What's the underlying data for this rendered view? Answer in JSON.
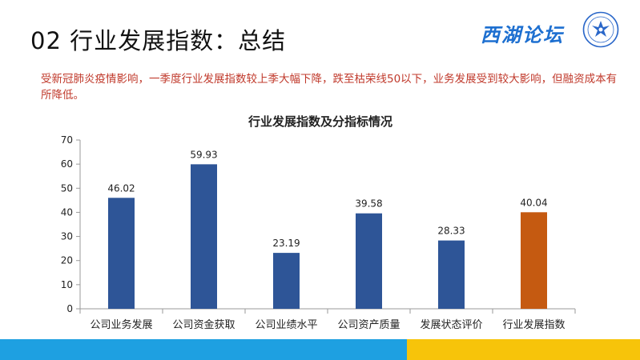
{
  "slide": {
    "title": "02 行业发展指数：总结",
    "logo_text": "西湖论坛",
    "emblem_icon": "eagle-emblem-icon",
    "summary": "受新冠肺炎疫情影响，一季度行业发展指数较上季大幅下降，跌至枯荣线50以下，业务发展受到较大影响，但融资成本有所降低。"
  },
  "colors": {
    "bar_primary": "#2e5597",
    "bar_highlight": "#c55a11",
    "summary_text": "#c0392b",
    "footer_blue": "#1ea0e1",
    "footer_yellow": "#f7c40a"
  },
  "chart_data": {
    "type": "bar",
    "title": "行业发展指数及分指标情况",
    "categories": [
      "公司业务发展",
      "公司资金获取",
      "公司业绩水平",
      "公司资产质量",
      "发展状态评价",
      "行业发展指数"
    ],
    "values": [
      46.02,
      59.93,
      23.19,
      39.58,
      28.33,
      40.04
    ],
    "value_labels": [
      "46.02",
      "59.93",
      "23.19",
      "39.58",
      "28.33",
      "40.04"
    ],
    "highlight_index": 5,
    "ylim": [
      0,
      70
    ],
    "yticks": [
      0,
      10,
      20,
      30,
      40,
      50,
      60,
      70
    ],
    "grid": false,
    "legend": "none",
    "xlabel": "",
    "ylabel": ""
  }
}
